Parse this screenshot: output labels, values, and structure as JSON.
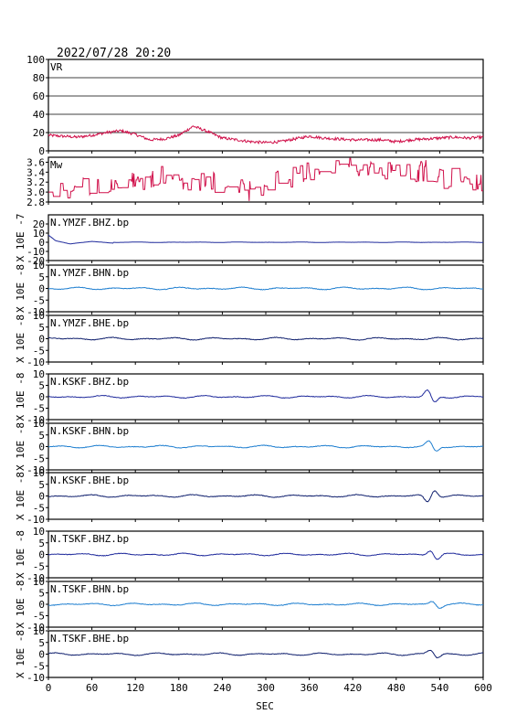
{
  "timestamp": "2022/07/28 20:20",
  "xlabel": "SEC",
  "chart_data": [
    {
      "type": "line",
      "label": "VR",
      "ylim": [
        0,
        100
      ],
      "yticks": [
        "100",
        "80",
        "60",
        "40",
        "20",
        "0"
      ],
      "series_color": "#d0104a",
      "grid": true,
      "x": [
        0,
        20,
        40,
        60,
        80,
        100,
        120,
        140,
        160,
        180,
        200,
        220,
        240,
        260,
        280,
        300,
        320,
        340,
        360,
        380,
        400,
        420,
        440,
        460,
        480,
        500,
        520,
        540,
        560,
        580,
        600
      ],
      "y": [
        17,
        16,
        15,
        17,
        20,
        22,
        18,
        12,
        13,
        17,
        27,
        21,
        14,
        12,
        10,
        9,
        10,
        13,
        16,
        14,
        13,
        12,
        12,
        12,
        10,
        12,
        13,
        14,
        15,
        14,
        15
      ]
    },
    {
      "type": "line",
      "label": "Mw",
      "ylim": [
        2.8,
        3.7
      ],
      "yticks": [
        "3.6",
        "3.4",
        "3.2",
        "3.0",
        "2.8"
      ],
      "series_color": "#d0104a",
      "grid": false,
      "x": [
        0,
        20,
        40,
        60,
        80,
        100,
        120,
        140,
        160,
        180,
        200,
        220,
        240,
        260,
        280,
        300,
        320,
        340,
        360,
        380,
        400,
        420,
        440,
        460,
        480,
        500,
        520,
        540,
        560,
        580,
        600
      ],
      "y": [
        3.0,
        2.95,
        3.05,
        3.15,
        3.25,
        3.2,
        3.2,
        3.3,
        3.4,
        3.2,
        3.2,
        3.3,
        3.1,
        3.05,
        3.0,
        3.1,
        3.25,
        3.35,
        3.4,
        3.5,
        3.6,
        3.5,
        3.55,
        3.45,
        3.35,
        3.4,
        3.45,
        3.3,
        3.25,
        3.2,
        3.2
      ]
    },
    {
      "type": "line",
      "label": "N.YMZF.BHZ.bp",
      "ylim": [
        -20,
        30
      ],
      "yticks": [
        "20",
        "10",
        "0",
        "-10",
        "-20"
      ],
      "ylabel": "X 10E -7",
      "series_color": "#1f2a9c",
      "events": [],
      "onset": {
        "x": [
          0,
          10,
          30,
          60,
          90
        ],
        "y": [
          8,
          2,
          -2,
          1,
          -1
        ]
      }
    },
    {
      "type": "line",
      "label": "N.YMZF.BHN.bp",
      "ylim": [
        -10,
        10
      ],
      "yticks": [
        "10",
        "5",
        "0",
        "-5",
        "-10"
      ],
      "ylabel": "X 10E -8",
      "series_color": "#1f7fd0",
      "events": []
    },
    {
      "type": "line",
      "label": "N.YMZF.BHE.bp",
      "ylim": [
        -10,
        10
      ],
      "yticks": [
        "10",
        "5",
        "0",
        "-5",
        "-10"
      ],
      "ylabel": "X 10E -8",
      "series_color": "#10206e",
      "events": []
    },
    {
      "type": "line",
      "label": "N.KSKF.BHZ.bp",
      "ylim": [
        -10,
        10
      ],
      "yticks": [
        "10",
        "5",
        "0",
        "-5",
        "-10"
      ],
      "ylabel": "X 10E -8",
      "series_color": "#1f2a9c",
      "events": [
        {
          "x": 528,
          "amp": -4
        }
      ]
    },
    {
      "type": "line",
      "label": "N.KSKF.BHN.bp",
      "ylim": [
        -10,
        10
      ],
      "yticks": [
        "10",
        "5",
        "0",
        "-5",
        "-10"
      ],
      "ylabel": "X 10E -8",
      "series_color": "#1f7fd0",
      "events": [
        {
          "x": 530,
          "amp": -3
        }
      ]
    },
    {
      "type": "line",
      "label": "N.KSKF.BHE.bp",
      "ylim": [
        -10,
        10
      ],
      "yticks": [
        "10",
        "5",
        "0",
        "-5",
        "-10"
      ],
      "ylabel": "X 10E -8",
      "series_color": "#10206e",
      "events": [
        {
          "x": 528,
          "amp": 4
        }
      ]
    },
    {
      "type": "line",
      "label": "N.TSKF.BHZ.bp",
      "ylim": [
        -10,
        10
      ],
      "yticks": [
        "10",
        "5",
        "0",
        "-5",
        "-10"
      ],
      "ylabel": "X 10E -8",
      "series_color": "#1f2a9c",
      "events": [
        {
          "x": 532,
          "amp": -3
        }
      ]
    },
    {
      "type": "line",
      "label": "N.TSKF.BHN.bp",
      "ylim": [
        -10,
        10
      ],
      "yticks": [
        "10",
        "5",
        "0",
        "-5",
        "-10"
      ],
      "ylabel": "X 10E -8",
      "series_color": "#1f7fd0",
      "events": [
        {
          "x": 535,
          "amp": -2
        }
      ]
    },
    {
      "type": "line",
      "label": "N.TSKF.BHE.bp",
      "ylim": [
        -10,
        10
      ],
      "yticks": [
        "10",
        "5",
        "0",
        "-5",
        "-10"
      ],
      "ylabel": "X 10E -8",
      "series_color": "#10206e",
      "events": [
        {
          "x": 532,
          "amp": -2.5
        }
      ]
    }
  ],
  "xaxis": {
    "xlim": [
      0,
      600
    ],
    "ticks": [
      "0",
      "60",
      "120",
      "180",
      "240",
      "300",
      "360",
      "420",
      "480",
      "540",
      "600"
    ]
  }
}
